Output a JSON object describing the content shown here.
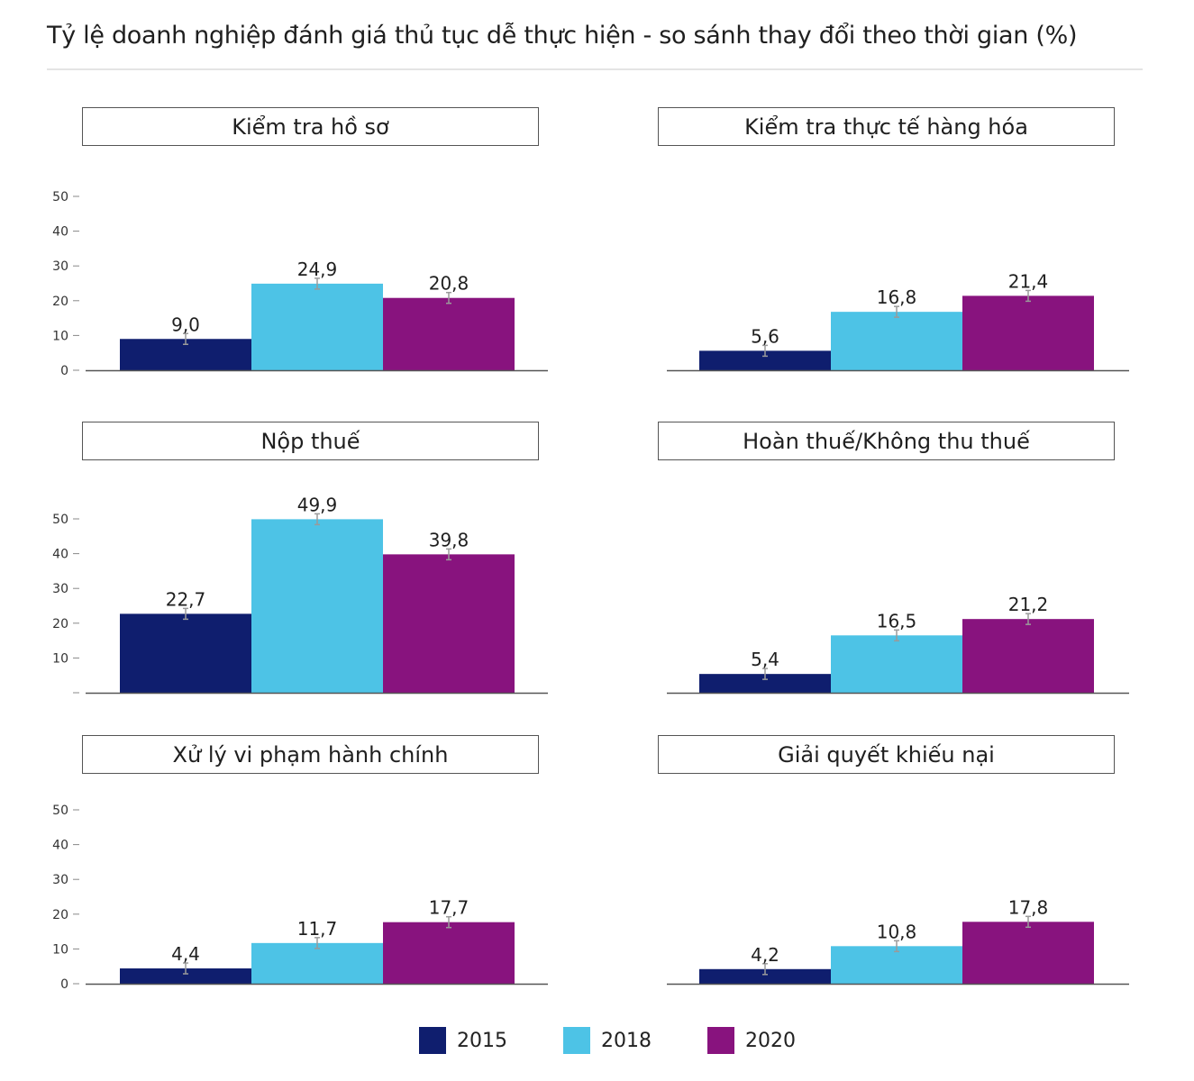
{
  "chart_data": {
    "title": "Tỷ lệ doanh nghiệp đánh giá thủ tục dễ thực hiện - so sánh thay đổi theo thời gian (%)",
    "type": "bar",
    "categories": [
      "2015",
      "2018",
      "2020"
    ],
    "colors": [
      "#0f1e6e",
      "#4dc3e6",
      "#88137e"
    ],
    "ylim": [
      0,
      50
    ],
    "yticks": [
      0,
      10,
      20,
      30,
      40,
      50
    ],
    "legend": {
      "position": "bottom",
      "labels": [
        "2015",
        "2018",
        "2020"
      ]
    },
    "panels": [
      {
        "title": "Kiểm tra hồ sơ",
        "values": [
          9.0,
          24.9,
          20.8
        ],
        "labels": [
          "9,0",
          "24,9",
          "20,8"
        ],
        "yticks": [
          "0",
          "10",
          "20",
          "30",
          "40",
          "50"
        ]
      },
      {
        "title": "Kiểm tra thực tế hàng hóa",
        "values": [
          5.6,
          16.8,
          21.4
        ],
        "labels": [
          "5,6",
          "16,8",
          "21,4"
        ],
        "yticks": []
      },
      {
        "title": "Nộp thuế",
        "values": [
          22.7,
          49.9,
          39.8
        ],
        "labels": [
          "22,7",
          "49,9",
          "39,8"
        ],
        "yticks": [
          "",
          "10",
          "20",
          "30",
          "40",
          "50"
        ]
      },
      {
        "title": "Hoàn thuế/Không thu thuế",
        "values": [
          5.4,
          16.5,
          21.2
        ],
        "labels": [
          "5,4",
          "16,5",
          "21,2"
        ],
        "yticks": []
      },
      {
        "title": "Xử lý vi phạm hành chính",
        "values": [
          4.4,
          11.7,
          17.7
        ],
        "labels": [
          "4,4",
          "11,7",
          "17,7"
        ],
        "yticks": [
          "0",
          "10",
          "20",
          "30",
          "40",
          "50"
        ]
      },
      {
        "title": "Giải quyết khiếu nại",
        "values": [
          4.2,
          10.8,
          17.8
        ],
        "labels": [
          "4,2",
          "10,8",
          "17,8"
        ],
        "yticks": []
      }
    ]
  }
}
